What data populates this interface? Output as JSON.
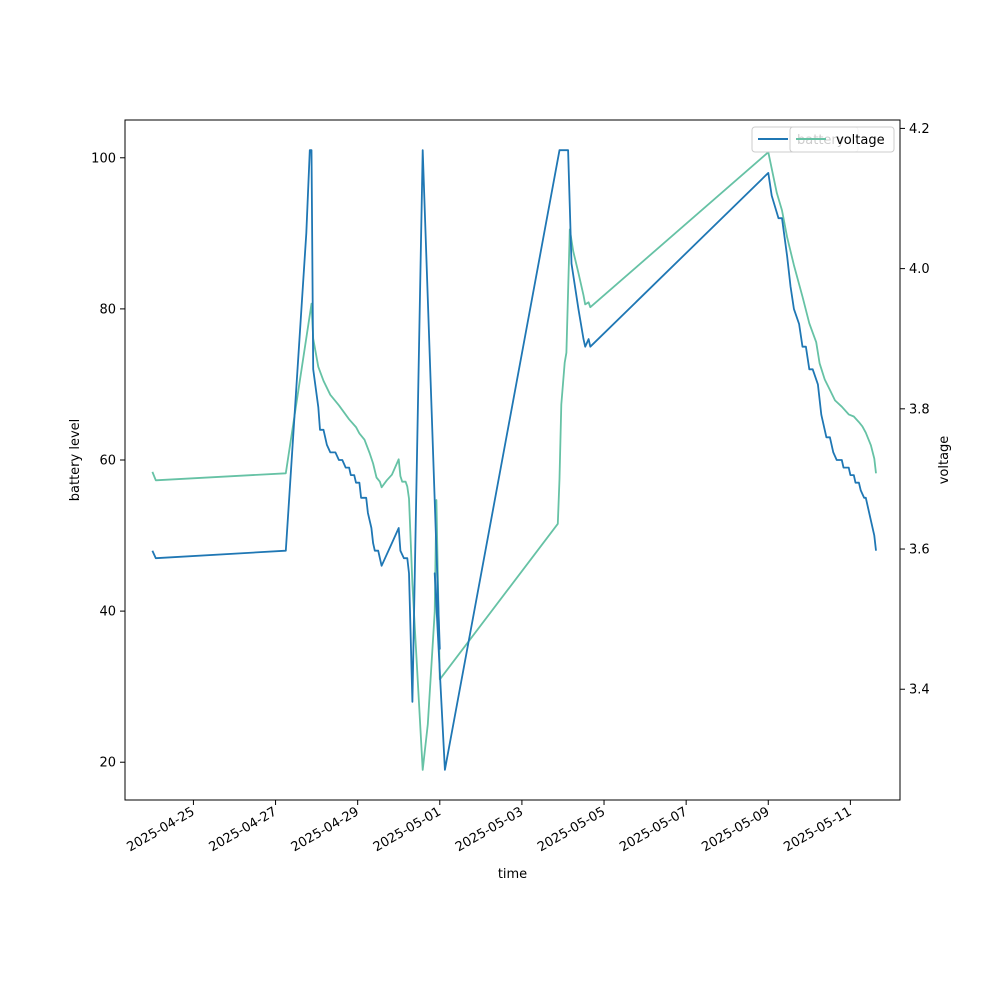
{
  "chart_data": {
    "type": "line",
    "xlabel": "time",
    "ylabel_left": "battery level",
    "ylabel_right": "voltage",
    "xlim": [
      "2025-04-23T08:00",
      "2025-05-12T05:00"
    ],
    "ylim_left": [
      15,
      105
    ],
    "ylim_right": [
      3.242,
      4.212
    ],
    "x_ticks": [
      "2025-04-25",
      "2025-04-27",
      "2025-04-29",
      "2025-05-01",
      "2025-05-03",
      "2025-05-05",
      "2025-05-07",
      "2025-05-09",
      "2025-05-11"
    ],
    "y_ticks_left": [
      20,
      40,
      60,
      80,
      100
    ],
    "y_ticks_right": [
      3.4,
      3.6,
      3.8,
      4.0,
      4.2
    ],
    "grid": false,
    "legends": [
      {
        "entries": [
          "battery"
        ],
        "placement": "top-right"
      },
      {
        "entries": [
          "voltage"
        ],
        "placement": "top-right"
      }
    ],
    "series": [
      {
        "name": "battery",
        "axis": "left",
        "color": "#1f77b4",
        "points": [
          [
            "2025-04-24T00:00",
            48
          ],
          [
            "2025-04-24T02:00",
            47
          ],
          [
            "2025-04-27T06:00",
            48
          ],
          [
            "2025-04-27T18:00",
            90
          ],
          [
            "2025-04-27T20:00",
            101
          ],
          [
            "2025-04-27T21:00",
            101
          ],
          [
            "2025-04-27T22:00",
            72
          ],
          [
            "2025-04-28T01:00",
            67
          ],
          [
            "2025-04-28T02:00",
            64
          ],
          [
            "2025-04-28T04:00",
            64
          ],
          [
            "2025-04-28T06:00",
            62
          ],
          [
            "2025-04-28T08:00",
            61
          ],
          [
            "2025-04-28T11:00",
            61
          ],
          [
            "2025-04-28T13:00",
            60
          ],
          [
            "2025-04-28T15:00",
            60
          ],
          [
            "2025-04-28T17:00",
            59
          ],
          [
            "2025-04-28T19:00",
            59
          ],
          [
            "2025-04-28T20:00",
            58
          ],
          [
            "2025-04-28T22:00",
            58
          ],
          [
            "2025-04-28T23:00",
            57
          ],
          [
            "2025-04-29T01:00",
            57
          ],
          [
            "2025-04-29T02:00",
            55
          ],
          [
            "2025-04-29T05:00",
            55
          ],
          [
            "2025-04-29T06:00",
            53
          ],
          [
            "2025-04-29T08:00",
            51
          ],
          [
            "2025-04-29T09:00",
            49
          ],
          [
            "2025-04-29T10:00",
            48
          ],
          [
            "2025-04-29T12:00",
            48
          ],
          [
            "2025-04-29T14:00",
            46
          ],
          [
            "2025-04-29T20:00",
            49
          ],
          [
            "2025-04-30T00:00",
            51
          ],
          [
            "2025-04-30T01:00",
            48
          ],
          [
            "2025-04-30T03:00",
            47
          ],
          [
            "2025-04-30T05:00",
            47
          ],
          [
            "2025-04-30T06:00",
            45
          ],
          [
            "2025-04-30T08:00",
            28
          ],
          [
            "2025-04-30T14:00",
            101
          ],
          [
            "2025-04-31T00:00",
            35
          ],
          [
            "2025-04-30T21:00",
            45
          ],
          [
            "2025-05-01T03:00",
            19
          ],
          [
            "2025-05-03T22:00",
            101
          ],
          [
            "2025-05-04T03:00",
            101
          ],
          [
            "2025-05-04T05:00",
            86
          ],
          [
            "2025-05-04T09:00",
            80
          ],
          [
            "2025-05-04T12:00",
            76
          ],
          [
            "2025-05-04T13:00",
            75
          ],
          [
            "2025-05-04T15:00",
            76
          ],
          [
            "2025-05-04T16:00",
            75
          ],
          [
            "2025-05-09T00:00",
            98
          ],
          [
            "2025-05-09T02:00",
            95
          ],
          [
            "2025-05-09T06:00",
            92
          ],
          [
            "2025-05-09T08:00",
            92
          ],
          [
            "2025-05-09T11:00",
            87
          ],
          [
            "2025-05-09T13:00",
            83
          ],
          [
            "2025-05-09T15:00",
            80
          ],
          [
            "2025-05-09T18:00",
            78
          ],
          [
            "2025-05-09T20:00",
            75
          ],
          [
            "2025-05-09T22:00",
            75
          ],
          [
            "2025-05-10T00:00",
            72
          ],
          [
            "2025-05-10T02:00",
            72
          ],
          [
            "2025-05-10T05:00",
            70
          ],
          [
            "2025-05-10T07:00",
            66
          ],
          [
            "2025-05-10T10:00",
            63
          ],
          [
            "2025-05-10T12:00",
            63
          ],
          [
            "2025-05-10T14:00",
            61
          ],
          [
            "2025-05-10T16:00",
            60
          ],
          [
            "2025-05-10T19:00",
            60
          ],
          [
            "2025-05-10T20:00",
            59
          ],
          [
            "2025-05-10T23:00",
            59
          ],
          [
            "2025-05-11T00:00",
            58
          ],
          [
            "2025-05-11T02:00",
            58
          ],
          [
            "2025-05-11T03:00",
            57
          ],
          [
            "2025-05-11T05:00",
            57
          ],
          [
            "2025-05-11T06:00",
            56
          ],
          [
            "2025-05-11T08:00",
            55
          ],
          [
            "2025-05-11T09:00",
            55
          ],
          [
            "2025-05-11T11:00",
            53
          ],
          [
            "2025-05-11T14:00",
            50
          ],
          [
            "2025-05-11T15:00",
            48
          ]
        ]
      },
      {
        "name": "voltage",
        "axis": "right",
        "color": "#66c2a5",
        "points": [
          [
            "2025-04-24T00:00",
            3.71
          ],
          [
            "2025-04-24T02:00",
            3.698
          ],
          [
            "2025-04-27T06:00",
            3.708
          ],
          [
            "2025-04-27T21:00",
            3.95
          ],
          [
            "2025-04-27T22:00",
            3.9
          ],
          [
            "2025-04-28T01:00",
            3.86
          ],
          [
            "2025-04-28T04:00",
            3.84
          ],
          [
            "2025-04-28T08:00",
            3.82
          ],
          [
            "2025-04-28T13:00",
            3.805
          ],
          [
            "2025-04-28T19:00",
            3.785
          ],
          [
            "2025-04-28T23:00",
            3.774
          ],
          [
            "2025-04-29T01:00",
            3.765
          ],
          [
            "2025-04-29T04:00",
            3.756
          ],
          [
            "2025-04-29T07:00",
            3.737
          ],
          [
            "2025-04-29T09:00",
            3.722
          ],
          [
            "2025-04-29T11:00",
            3.702
          ],
          [
            "2025-04-29T13:00",
            3.696
          ],
          [
            "2025-04-29T14:00",
            3.688
          ],
          [
            "2025-04-29T17:00",
            3.698
          ],
          [
            "2025-04-29T20:00",
            3.706
          ],
          [
            "2025-04-30T00:00",
            3.728
          ],
          [
            "2025-04-30T01:00",
            3.704
          ],
          [
            "2025-04-30T02:00",
            3.696
          ],
          [
            "2025-04-30T04:00",
            3.696
          ],
          [
            "2025-04-30T05:00",
            3.689
          ],
          [
            "2025-04-30T06:00",
            3.672
          ],
          [
            "2025-04-30T08:00",
            3.55
          ],
          [
            "2025-04-30T14:00",
            3.285
          ],
          [
            "2025-04-30T17:00",
            3.35
          ],
          [
            "2025-04-30T21:00",
            3.51
          ],
          [
            "2025-04-30T22:00",
            3.67
          ],
          [
            "2025-05-01T00:00",
            3.414
          ],
          [
            "2025-05-03T21:00",
            3.636
          ],
          [
            "2025-05-03T22:00",
            3.7
          ],
          [
            "2025-05-03T23:00",
            3.806
          ],
          [
            "2025-05-04T01:00",
            3.866
          ],
          [
            "2025-05-04T02:00",
            3.88
          ],
          [
            "2025-05-04T04:00",
            4.056
          ],
          [
            "2025-05-04T06:00",
            4.025
          ],
          [
            "2025-05-04T09:00",
            3.994
          ],
          [
            "2025-05-04T12:00",
            3.962
          ],
          [
            "2025-05-04T13:00",
            3.949
          ],
          [
            "2025-05-04T15:00",
            3.952
          ],
          [
            "2025-05-04T16:00",
            3.945
          ],
          [
            "2025-05-09T00:00",
            4.166
          ],
          [
            "2025-05-09T05:00",
            4.108
          ],
          [
            "2025-05-09T08:00",
            4.083
          ],
          [
            "2025-05-09T11:00",
            4.045
          ],
          [
            "2025-05-09T15:00",
            4.005
          ],
          [
            "2025-05-09T20:00",
            3.96
          ],
          [
            "2025-05-10T00:00",
            3.922
          ],
          [
            "2025-05-10T04:00",
            3.895
          ],
          [
            "2025-05-10T06:00",
            3.865
          ],
          [
            "2025-05-10T09:00",
            3.842
          ],
          [
            "2025-05-10T12:00",
            3.827
          ],
          [
            "2025-05-10T15:00",
            3.812
          ],
          [
            "2025-05-10T19:00",
            3.803
          ],
          [
            "2025-05-10T23:00",
            3.792
          ],
          [
            "2025-05-11T02:00",
            3.789
          ],
          [
            "2025-05-11T05:00",
            3.781
          ],
          [
            "2025-05-11T07:00",
            3.775
          ],
          [
            "2025-05-11T09:00",
            3.766
          ],
          [
            "2025-05-11T12:00",
            3.748
          ],
          [
            "2025-05-11T14:00",
            3.729
          ],
          [
            "2025-05-11T15:00",
            3.708
          ]
        ]
      }
    ]
  }
}
